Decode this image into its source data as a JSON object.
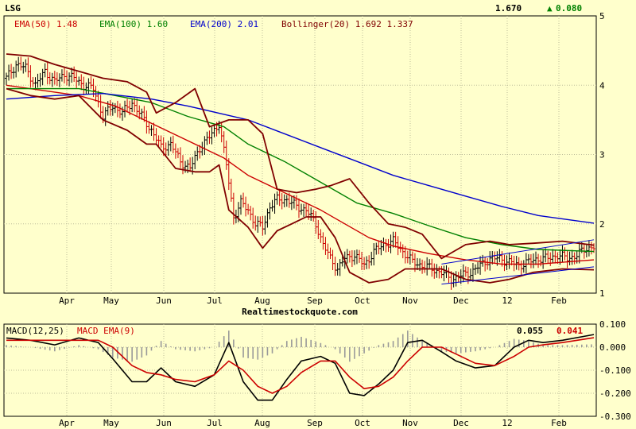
{
  "header": {
    "symbol": "LSG",
    "last_price": "1.670",
    "change_arrow": "▲",
    "change": "0.080",
    "site": "Realtimestockquote.com"
  },
  "legend": [
    {
      "label": "EMA(50) 1.48",
      "color": "#cc0000"
    },
    {
      "label": "EMA(100) 1.60",
      "color": "#008000"
    },
    {
      "label": "EMA(200) 2.01",
      "color": "#0000cc"
    },
    {
      "label": "Bollinger(20) 1.692 1.337",
      "color": "#800000"
    }
  ],
  "macd_legend": {
    "macd_label": "MACD(12,25)",
    "signal_label": "MACD EMA(9)",
    "macd_value": "0.055",
    "signal_value": "0.041"
  },
  "colors": {
    "background": "#ffffcc",
    "ema50": "#cc0000",
    "ema100": "#008000",
    "ema200": "#0000cc",
    "bollinger": "#800000",
    "channel": "#0000cc",
    "up_bar": "#000000",
    "down_bar": "#cc0000",
    "histogram": "#999999"
  },
  "chart_data": [
    {
      "type": "line",
      "subtype": "price-with-indicators",
      "x_tick_labels": [
        "Apr",
        "May",
        "Jun",
        "Jul",
        "Aug",
        "Sep",
        "Oct",
        "Nov",
        "Dec",
        "12",
        "Feb"
      ],
      "y_tick_labels": [
        "5",
        "4",
        "3",
        "2",
        "1"
      ],
      "ylim": [
        1,
        5
      ],
      "grid": true,
      "legend_position": "top-left",
      "price_path": [
        [
          0,
          4.1
        ],
        [
          4,
          4.3
        ],
        [
          8,
          4.25
        ],
        [
          12,
          4.0
        ],
        [
          16,
          4.2
        ],
        [
          20,
          4.05
        ],
        [
          24,
          4.15
        ],
        [
          28,
          4.1
        ],
        [
          32,
          4.0
        ],
        [
          36,
          3.95
        ],
        [
          40,
          3.55
        ],
        [
          44,
          3.7
        ],
        [
          48,
          3.6
        ],
        [
          52,
          3.75
        ],
        [
          56,
          3.55
        ],
        [
          60,
          3.35
        ],
        [
          64,
          3.1
        ],
        [
          68,
          3.15
        ],
        [
          72,
          2.9
        ],
        [
          76,
          2.8
        ],
        [
          80,
          3.1
        ],
        [
          84,
          3.25
        ],
        [
          88,
          3.45
        ],
        [
          91,
          2.85
        ],
        [
          94,
          2.1
        ],
        [
          97,
          2.3
        ],
        [
          100,
          2.2
        ],
        [
          103,
          2.0
        ],
        [
          106,
          1.95
        ],
        [
          109,
          2.25
        ],
        [
          112,
          2.35
        ],
        [
          116,
          2.35
        ],
        [
          120,
          2.25
        ],
        [
          124,
          2.2
        ],
        [
          128,
          2.0
        ],
        [
          131,
          1.7
        ],
        [
          134,
          1.5
        ],
        [
          137,
          1.35
        ],
        [
          140,
          1.5
        ],
        [
          144,
          1.55
        ],
        [
          148,
          1.4
        ],
        [
          152,
          1.6
        ],
        [
          156,
          1.7
        ],
        [
          160,
          1.75
        ],
        [
          164,
          1.6
        ],
        [
          168,
          1.45
        ],
        [
          172,
          1.4
        ],
        [
          176,
          1.35
        ],
        [
          180,
          1.3
        ],
        [
          184,
          1.2
        ],
        [
          188,
          1.25
        ],
        [
          192,
          1.3
        ],
        [
          196,
          1.4
        ],
        [
          200,
          1.5
        ],
        [
          204,
          1.5
        ],
        [
          208,
          1.45
        ],
        [
          212,
          1.4
        ],
        [
          216,
          1.45
        ],
        [
          220,
          1.5
        ],
        [
          224,
          1.5
        ],
        [
          228,
          1.55
        ],
        [
          232,
          1.5
        ],
        [
          236,
          1.55
        ],
        [
          240,
          1.65
        ],
        [
          243,
          1.67
        ]
      ],
      "series": [
        {
          "name": "EMA(50)",
          "last": 1.48,
          "points": [
            [
              0,
              4.0
            ],
            [
              30,
              3.85
            ],
            [
              45,
              3.7
            ],
            [
              60,
              3.45
            ],
            [
              75,
              3.2
            ],
            [
              90,
              2.95
            ],
            [
              100,
              2.7
            ],
            [
              115,
              2.45
            ],
            [
              130,
              2.2
            ],
            [
              140,
              2.0
            ],
            [
              150,
              1.8
            ],
            [
              160,
              1.68
            ],
            [
              175,
              1.57
            ],
            [
              190,
              1.48
            ],
            [
              205,
              1.42
            ],
            [
              220,
              1.42
            ],
            [
              243,
              1.48
            ]
          ]
        },
        {
          "name": "EMA(100)",
          "last": 1.6,
          "points": [
            [
              0,
              3.95
            ],
            [
              30,
              3.95
            ],
            [
              45,
              3.85
            ],
            [
              60,
              3.75
            ],
            [
              75,
              3.55
            ],
            [
              90,
              3.4
            ],
            [
              100,
              3.15
            ],
            [
              115,
              2.9
            ],
            [
              130,
              2.6
            ],
            [
              145,
              2.3
            ],
            [
              160,
              2.15
            ],
            [
              175,
              1.97
            ],
            [
              190,
              1.8
            ],
            [
              205,
              1.7
            ],
            [
              220,
              1.63
            ],
            [
              243,
              1.6
            ]
          ]
        },
        {
          "name": "EMA(200)",
          "last": 2.01,
          "points": [
            [
              0,
              3.8
            ],
            [
              20,
              3.85
            ],
            [
              40,
              3.88
            ],
            [
              60,
              3.8
            ],
            [
              75,
              3.7
            ],
            [
              90,
              3.58
            ],
            [
              100,
              3.5
            ],
            [
              115,
              3.3
            ],
            [
              130,
              3.1
            ],
            [
              145,
              2.9
            ],
            [
              160,
              2.7
            ],
            [
              175,
              2.55
            ],
            [
              190,
              2.4
            ],
            [
              205,
              2.25
            ],
            [
              220,
              2.12
            ],
            [
              243,
              2.01
            ]
          ]
        },
        {
          "name": "Bollinger(20)",
          "role": "upper",
          "points": [
            [
              0,
              4.45
            ],
            [
              10,
              4.42
            ],
            [
              20,
              4.3
            ],
            [
              30,
              4.2
            ],
            [
              40,
              4.1
            ],
            [
              50,
              4.05
            ],
            [
              58,
              3.9
            ],
            [
              62,
              3.6
            ],
            [
              70,
              3.75
            ],
            [
              78,
              3.95
            ],
            [
              84,
              3.4
            ],
            [
              92,
              3.5
            ],
            [
              100,
              3.5
            ],
            [
              106,
              3.3
            ],
            [
              112,
              2.5
            ],
            [
              120,
              2.45
            ],
            [
              128,
              2.5
            ],
            [
              134,
              2.55
            ],
            [
              142,
              2.65
            ],
            [
              150,
              2.3
            ],
            [
              158,
              2.0
            ],
            [
              165,
              1.95
            ],
            [
              172,
              1.85
            ],
            [
              180,
              1.5
            ],
            [
              190,
              1.7
            ],
            [
              200,
              1.75
            ],
            [
              208,
              1.7
            ],
            [
              218,
              1.72
            ],
            [
              230,
              1.75
            ],
            [
              243,
              1.692
            ]
          ]
        },
        {
          "name": "Bollinger(20)",
          "role": "lower",
          "points": [
            [
              0,
              3.95
            ],
            [
              10,
              3.85
            ],
            [
              20,
              3.8
            ],
            [
              30,
              3.85
            ],
            [
              40,
              3.5
            ],
            [
              50,
              3.35
            ],
            [
              58,
              3.15
            ],
            [
              62,
              3.15
            ],
            [
              70,
              2.8
            ],
            [
              78,
              2.75
            ],
            [
              84,
              2.75
            ],
            [
              88,
              2.85
            ],
            [
              92,
              2.2
            ],
            [
              100,
              1.95
            ],
            [
              106,
              1.65
            ],
            [
              112,
              1.9
            ],
            [
              118,
              2.0
            ],
            [
              124,
              2.1
            ],
            [
              130,
              2.1
            ],
            [
              136,
              1.8
            ],
            [
              142,
              1.3
            ],
            [
              150,
              1.15
            ],
            [
              158,
              1.2
            ],
            [
              165,
              1.35
            ],
            [
              172,
              1.35
            ],
            [
              180,
              1.35
            ],
            [
              190,
              1.2
            ],
            [
              200,
              1.15
            ],
            [
              208,
              1.2
            ],
            [
              218,
              1.3
            ],
            [
              230,
              1.35
            ],
            [
              243,
              1.337
            ]
          ]
        }
      ]
    },
    {
      "type": "line",
      "subtype": "macd",
      "x_tick_labels": [
        "Apr",
        "May",
        "Jun",
        "Jul",
        "Aug",
        "Sep",
        "Oct",
        "Nov",
        "Dec",
        "12",
        "Feb"
      ],
      "y_tick_labels": [
        "0.100",
        "0.000",
        "-0.100",
        "-0.200",
        "-0.300"
      ],
      "ylim": [
        -0.3,
        0.1
      ],
      "grid": true,
      "series": [
        {
          "name": "MACD(12,25)",
          "last": 0.055,
          "points": [
            [
              0,
              0.04
            ],
            [
              10,
              0.03
            ],
            [
              20,
              0.01
            ],
            [
              30,
              0.04
            ],
            [
              38,
              0.02
            ],
            [
              44,
              -0.05
            ],
            [
              52,
              -0.15
            ],
            [
              58,
              -0.15
            ],
            [
              64,
              -0.09
            ],
            [
              70,
              -0.15
            ],
            [
              78,
              -0.17
            ],
            [
              86,
              -0.12
            ],
            [
              92,
              0.02
            ],
            [
              98,
              -0.15
            ],
            [
              104,
              -0.23
            ],
            [
              110,
              -0.23
            ],
            [
              116,
              -0.14
            ],
            [
              122,
              -0.06
            ],
            [
              130,
              -0.04
            ],
            [
              136,
              -0.07
            ],
            [
              142,
              -0.2
            ],
            [
              148,
              -0.21
            ],
            [
              154,
              -0.16
            ],
            [
              160,
              -0.1
            ],
            [
              166,
              0.02
            ],
            [
              172,
              0.03
            ],
            [
              180,
              -0.02
            ],
            [
              186,
              -0.06
            ],
            [
              194,
              -0.09
            ],
            [
              202,
              -0.08
            ],
            [
              210,
              0.0
            ],
            [
              216,
              0.03
            ],
            [
              222,
              0.02
            ],
            [
              230,
              0.03
            ],
            [
              243,
              0.055
            ]
          ]
        },
        {
          "name": "MACD EMA(9)",
          "last": 0.041,
          "points": [
            [
              0,
              0.03
            ],
            [
              10,
              0.03
            ],
            [
              20,
              0.03
            ],
            [
              30,
              0.03
            ],
            [
              38,
              0.03
            ],
            [
              44,
              0.0
            ],
            [
              52,
              -0.08
            ],
            [
              58,
              -0.11
            ],
            [
              64,
              -0.12
            ],
            [
              70,
              -0.14
            ],
            [
              78,
              -0.15
            ],
            [
              86,
              -0.12
            ],
            [
              92,
              -0.06
            ],
            [
              98,
              -0.1
            ],
            [
              104,
              -0.17
            ],
            [
              110,
              -0.2
            ],
            [
              116,
              -0.17
            ],
            [
              122,
              -0.11
            ],
            [
              130,
              -0.06
            ],
            [
              136,
              -0.06
            ],
            [
              142,
              -0.13
            ],
            [
              148,
              -0.18
            ],
            [
              154,
              -0.17
            ],
            [
              160,
              -0.13
            ],
            [
              166,
              -0.06
            ],
            [
              172,
              0.0
            ],
            [
              180,
              0.0
            ],
            [
              186,
              -0.03
            ],
            [
              194,
              -0.07
            ],
            [
              202,
              -0.08
            ],
            [
              210,
              -0.04
            ],
            [
              216,
              0.0
            ],
            [
              222,
              0.01
            ],
            [
              230,
              0.02
            ],
            [
              243,
              0.041
            ]
          ]
        }
      ]
    }
  ]
}
